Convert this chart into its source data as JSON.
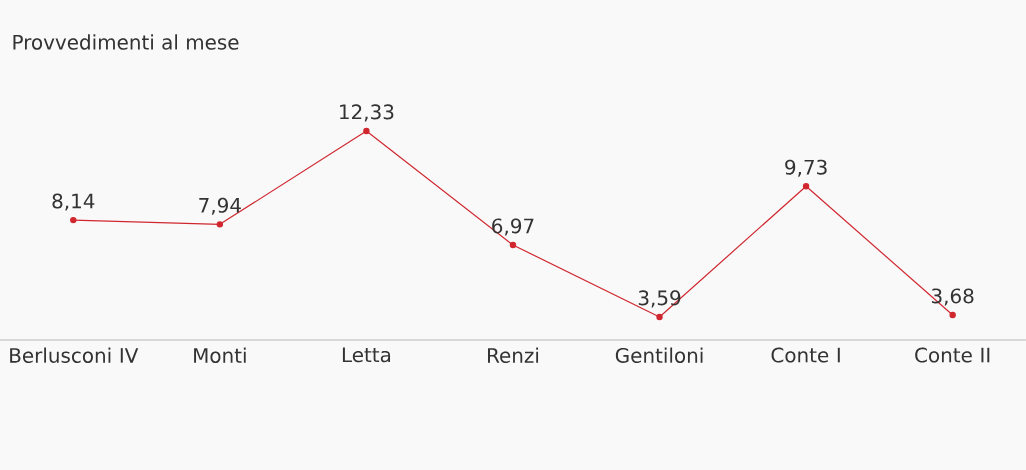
{
  "chart_data": {
    "type": "line",
    "title": "Provvedimenti al mese",
    "categories": [
      "Berlusconi IV",
      "Monti",
      "Letta",
      "Renzi",
      "Gentiloni",
      "Conte I",
      "Conte II"
    ],
    "values": [
      8.14,
      7.94,
      12.33,
      6.97,
      3.59,
      9.73,
      3.68
    ],
    "value_labels": [
      "8,14",
      "7,94",
      "12,33",
      "6,97",
      "3,59",
      "9,73",
      "3,68"
    ],
    "color": "#d0272f",
    "marker": "circle",
    "line_style": "solid"
  }
}
